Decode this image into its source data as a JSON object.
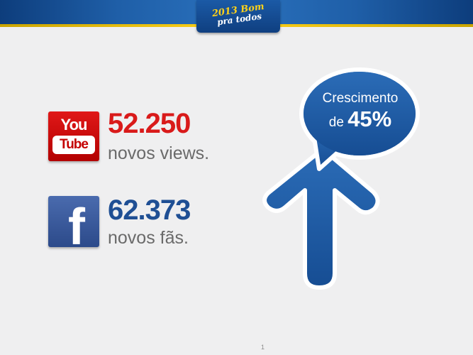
{
  "header": {
    "logo_line1": "2013 Bom",
    "logo_line2": "pra todos"
  },
  "youtube": {
    "badge_top": "You",
    "badge_bottom": "Tube",
    "value": "52.250",
    "label": "novos views.",
    "value_color": "#d91a1a"
  },
  "facebook": {
    "badge_letter": "f",
    "value": "62.373",
    "label": "novos fãs.",
    "value_color": "#1f4f94"
  },
  "growth": {
    "line1": "Crescimento",
    "line2_prefix": "de ",
    "value": "45%",
    "color": "#1f5aa2"
  },
  "footer": {
    "page_number": "1"
  }
}
